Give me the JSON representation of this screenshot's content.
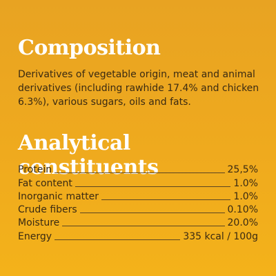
{
  "composition": {
    "title": "Composition",
    "text": "Derivatives of vegetable origin, meat and animal derivatives (including rawhide 17.4% and chicken 6.3%), various sugars, oils and fats."
  },
  "analytical": {
    "title": "Analytical constituents",
    "rows": [
      {
        "label": "Protein",
        "value": "25,5%"
      },
      {
        "label": "Fat content",
        "value": "1.0%"
      },
      {
        "label": "Inorganic matter",
        "value": "1.0%"
      },
      {
        "label": "Crude fibers",
        "value": "0.10%"
      },
      {
        "label": "Moisture",
        "value": "20.0%"
      },
      {
        "label": "Energy",
        "value": "335 kcal / 100g"
      }
    ]
  },
  "colors": {
    "background": "#EFAA1E",
    "heading": "#FFFFFF",
    "text": "#3A2A12"
  }
}
